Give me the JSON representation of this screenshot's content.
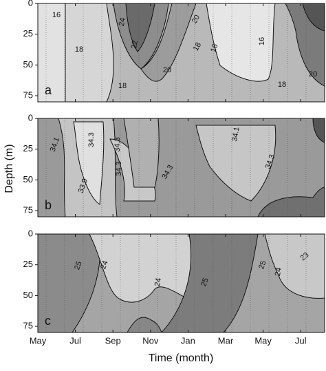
{
  "chart_data": [
    {
      "type": "contour",
      "panel_label": "a",
      "ylim": [
        80,
        0
      ],
      "yticks": [
        0,
        25,
        50,
        75
      ],
      "contour_labels": [
        16,
        24,
        18,
        22,
        20,
        18,
        20,
        18,
        16,
        16,
        20,
        18
      ]
    },
    {
      "type": "contour",
      "panel_label": "b",
      "ylim": [
        80,
        0
      ],
      "yticks": [
        0,
        25,
        50,
        75
      ],
      "y_label": "Depth (m)",
      "contour_labels": [
        34.1,
        34.3,
        34.3,
        34.3,
        33.9,
        34.3,
        34.1,
        34.3
      ]
    },
    {
      "type": "contour",
      "panel_label": "c",
      "ylim": [
        80,
        0
      ],
      "yticks": [
        0,
        25,
        50,
        75
      ],
      "contour_labels": [
        25,
        24,
        24,
        25,
        25,
        24,
        23
      ],
      "categories": [
        "May",
        "Jul",
        "Sep",
        "Nov",
        "Jan",
        "Mar",
        "May",
        "Jul"
      ],
      "x_label": "Time (month)"
    }
  ]
}
